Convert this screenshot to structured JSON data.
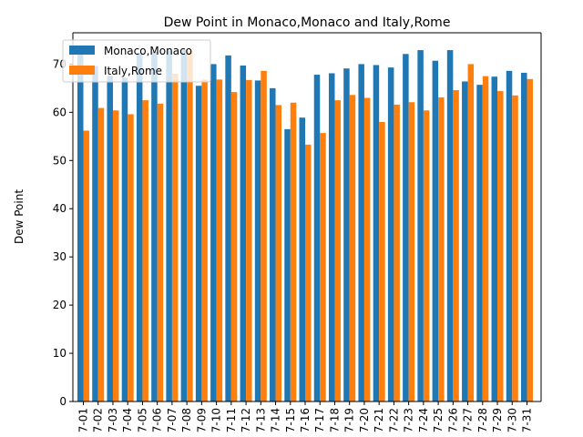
{
  "chart_data": {
    "type": "bar",
    "title": "Dew Point in Monaco,Monaco and Italy,Rome",
    "xlabel": "",
    "ylabel": "Dew Point",
    "ylim": [
      0,
      76.5
    ],
    "yticks": [
      0,
      10,
      20,
      30,
      40,
      50,
      60,
      70
    ],
    "legend_position": "upper left",
    "categories": [
      "7-01",
      "7-02",
      "7-03",
      "7-04",
      "7-05",
      "7-06",
      "7-07",
      "7-08",
      "7-09",
      "7-10",
      "7-11",
      "7-12",
      "7-13",
      "7-14",
      "7-15",
      "7-16",
      "7-17",
      "7-18",
      "7-19",
      "7-20",
      "7-21",
      "7-22",
      "7-23",
      "7-24",
      "7-25",
      "7-26",
      "7-27",
      "7-28",
      "7-29",
      "7-30",
      "7-31"
    ],
    "series": [
      {
        "name": "Monaco,Monaco",
        "color": "#1f77b4",
        "values": [
          72.2,
          69.6,
          67.6,
          67.2,
          72.3,
          72.5,
          72.8,
          73.0,
          65.5,
          70.0,
          71.8,
          69.7,
          66.6,
          65.0,
          56.5,
          58.9,
          67.8,
          68.1,
          69.1,
          70.0,
          69.8,
          69.3,
          72.1,
          72.9,
          70.7,
          72.9,
          66.4,
          65.7,
          67.4,
          68.6,
          68.2
        ]
      },
      {
        "name": "Italy,Rome",
        "color": "#ff7f0e",
        "values": [
          56.2,
          60.9,
          60.4,
          59.6,
          62.5,
          61.8,
          68.0,
          72.7,
          66.8,
          66.8,
          64.2,
          66.7,
          68.6,
          61.5,
          62.0,
          53.3,
          55.7,
          62.5,
          63.6,
          63.0,
          58.0,
          61.6,
          62.1,
          60.4,
          63.1,
          64.6,
          70.0,
          67.5,
          64.4,
          63.5,
          66.9
        ]
      }
    ]
  }
}
